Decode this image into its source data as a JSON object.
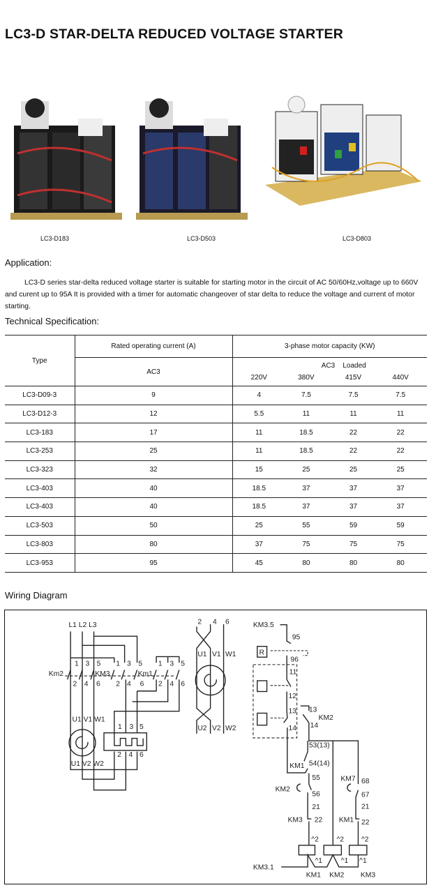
{
  "title": "LC3-D STAR-DELTA REDUCED VOLTAGE STARTER",
  "products": [
    {
      "label": "LC3-D183"
    },
    {
      "label": "LC3-D503"
    },
    {
      "label": "LC3-D803"
    }
  ],
  "application": {
    "heading": "Application:",
    "text": "LC3-D series star-delta reduced voltage starter is suitable for starting motor in the circuit of AC 50/60Hz,voltage up to 660V and curent up to 95A It is provided with a timer for automatic changeover of  star delta to reduce the voltage and current of motor starting."
  },
  "spec": {
    "heading": "Technical Specification:",
    "headers": {
      "type": "Type",
      "current": "Rated operating current (A)",
      "capacity": "3-phase motor capacity (KW)",
      "ac3": "AC3",
      "ac3_loaded": "AC3    Loaded",
      "voltages": [
        "220V",
        "380V",
        "415V",
        "440V"
      ]
    },
    "rows": [
      [
        "LC3-D09-3",
        "9",
        "4",
        "7.5",
        "7.5",
        "7.5"
      ],
      [
        "LC3-D12-3",
        "12",
        "5.5",
        "11",
        "11",
        "11"
      ],
      [
        "LC3-183",
        "17",
        "11",
        "18.5",
        "22",
        "22"
      ],
      [
        "LC3-253",
        "25",
        "11",
        "18.5",
        "22",
        "22"
      ],
      [
        "LC3-323",
        "32",
        "15",
        "25",
        "25",
        "25"
      ],
      [
        "LC3-403",
        "40",
        "18.5",
        "37",
        "37",
        "37"
      ],
      [
        "LC3-403",
        "40",
        "18.5",
        "37",
        "37",
        "37"
      ],
      [
        "LC3-503",
        "50",
        "25",
        "55",
        "59",
        "59"
      ],
      [
        "LC3-803",
        "80",
        "37",
        "75",
        "75",
        "75"
      ],
      [
        "LC3-953",
        "95",
        "45",
        "80",
        "80",
        "80"
      ]
    ]
  },
  "wiring": {
    "heading": "Wiring Diagram",
    "labels": [
      "L1 L2 L3",
      "1",
      "3",
      "5",
      "1",
      "3",
      "5",
      "1",
      "3",
      "5",
      "Km2",
      "KM3",
      "Km1",
      "2",
      "4",
      "6",
      "2",
      "4",
      "6",
      "2",
      "4",
      "6",
      "U1 V1 W1",
      "1",
      "3",
      "5",
      "2",
      "4",
      "6",
      "U1 V2 W2",
      "2",
      "4",
      "6",
      "U1",
      "V1",
      "W1",
      "U2",
      "V2",
      "W2",
      "KM3.5",
      "95",
      "R",
      "96",
      "11",
      "12",
      "13",
      "13",
      "KM2",
      "14",
      "14",
      "53(13)",
      "KM1",
      "54(14)",
      "55",
      "KM2",
      "56",
      "21",
      "KM3",
      "22",
      "KM7",
      "68",
      "67",
      "21",
      "KM1",
      "22",
      "^2",
      "^2",
      "^2",
      "^1",
      "^1",
      "^1",
      "KM3.1",
      "KM1",
      "KM2",
      "KM3"
    ]
  }
}
